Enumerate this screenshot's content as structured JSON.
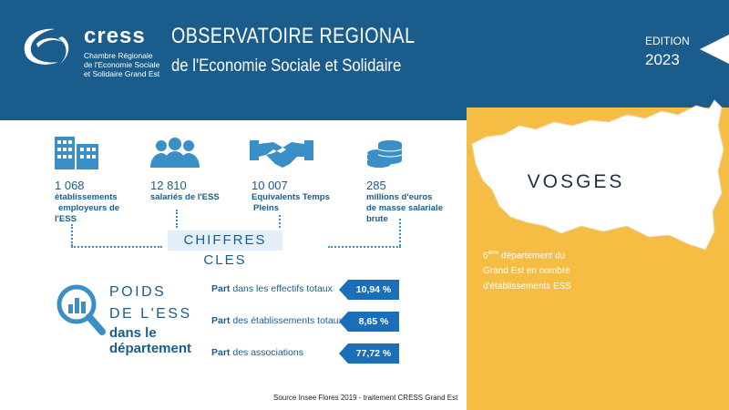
{
  "header": {
    "logo_text": "cress",
    "logo_sub_1": "Chambre Régionale",
    "logo_sub_2": "de l'Economie Sociale",
    "logo_sub_3": "et Solidaire Grand Est",
    "title": "OBSERVATOIRE REGIONAL",
    "subtitle": "de l'Economie Sociale et Solidaire",
    "edition_label": "EDITION",
    "edition_year": "2023"
  },
  "stats": [
    {
      "value": "1 068",
      "label_1": "établissements",
      "label_2": "employeurs de",
      "label_3": "l'ESS",
      "icon": "buildings-icon"
    },
    {
      "value": "12 810",
      "label_1": "salariés de l'ESS",
      "label_2": "",
      "label_3": "",
      "icon": "people-icon"
    },
    {
      "value": "10 007",
      "label_1": "Equivalents Temps",
      "label_2": "Pleins",
      "label_3": "",
      "icon": "handshake-icon"
    },
    {
      "value": "285",
      "label_1": "millions d'euros",
      "label_2": "de masse salariale",
      "label_3": "brute",
      "icon": "coins-icon"
    }
  ],
  "chiffres_cles": "CHIFFRES CLES",
  "poids": {
    "line1": "POIDS",
    "line2": "DE L'ESS",
    "line3a": "dans le",
    "line3b": "département"
  },
  "parts": [
    {
      "bold": "Part",
      "rest": " dans les effectifs totaux",
      "value": "10,94 %"
    },
    {
      "bold": "Part",
      "rest": " des établissements totaux",
      "value": "8,65 %"
    },
    {
      "bold": "Part",
      "rest": " des associations",
      "value": "77,72  %"
    }
  ],
  "department": {
    "name": "VOSGES",
    "rank_sup": "ème",
    "rank_num": "6",
    "rank_1": " département du",
    "rank_2": "Grand Est  en nombre",
    "rank_3": "d'établissements ESS"
  },
  "source": "Source Insee Flores 2019 - traitement CRESS Grand Est",
  "colors": {
    "primary": "#1a5d8c",
    "accent": "#f6bd45",
    "bar": "#1a6fb8"
  }
}
